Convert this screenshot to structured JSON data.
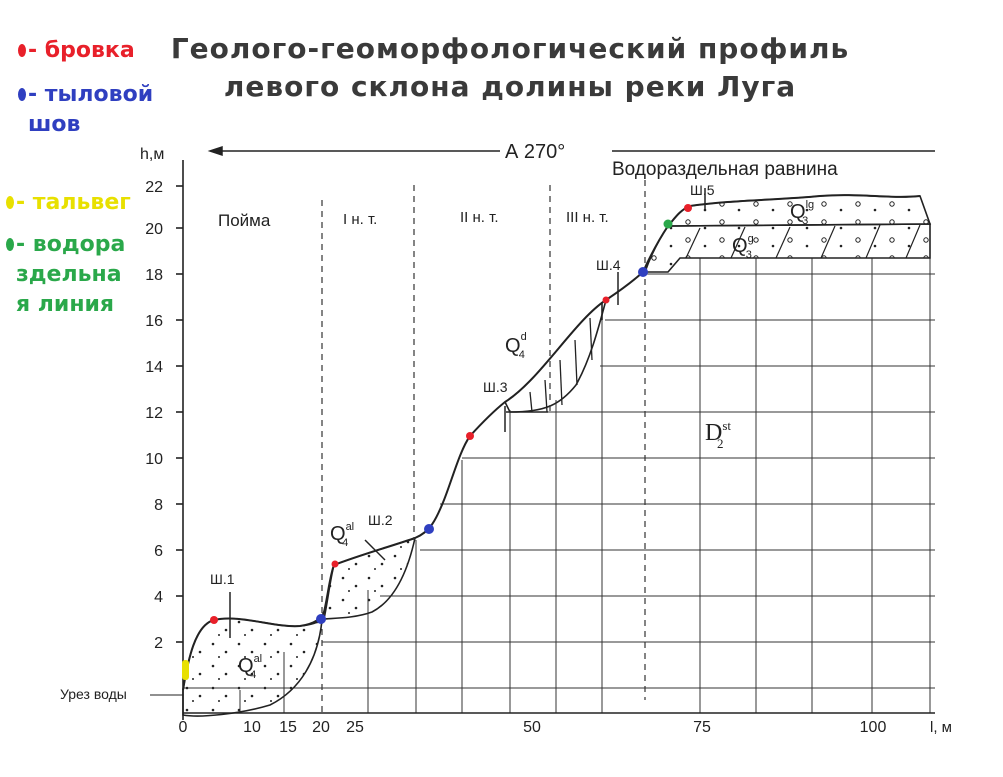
{
  "title": {
    "line1": "Геолого-геоморфологический профиль",
    "line2": "левого склона долины реки Луга"
  },
  "legend": [
    {
      "label": "- бровка",
      "color": "#e8202a",
      "icon": "red-dot"
    },
    {
      "label": "- тыловой шов",
      "color": "#2f3fc0",
      "icon": "blue-dot"
    },
    {
      "label": "- тальвег",
      "color": "#e8e000",
      "icon": "yellow-dot"
    },
    {
      "label": "- водораздельная линия",
      "color": "#2aa84a",
      "icon": "green-dot"
    }
  ],
  "axes": {
    "y_label": "h,м",
    "x_label": "l, м",
    "y_ticks": [
      "2",
      "4",
      "6",
      "8",
      "10",
      "12",
      "14",
      "16",
      "18",
      "20",
      "22"
    ],
    "x_ticks": [
      "0",
      "10",
      "15",
      "20",
      "25",
      "50",
      "75",
      "100"
    ],
    "water_level": "Урез воды"
  },
  "direction": {
    "label": "А 270°"
  },
  "zones": [
    "Пойма",
    "I н. т.",
    "II н. т.",
    "III н. т.",
    "Водораздельная равнина"
  ],
  "pits": [
    "Ш.1",
    "Ш.2",
    "Ш.3",
    "Ш.4",
    "Ш.5"
  ],
  "deposits": {
    "q4al_base": "Q",
    "q4al_sup": "al",
    "q4al_sub": "4",
    "q4d_base": "Q",
    "q4d_sup": "d",
    "q4d_sub": "4",
    "q3g_base": "Q",
    "q3g_sup": "g",
    "q3g_sub": "3",
    "q3lg_base": "Q",
    "q3lg_sup": "lg",
    "q3lg_sub": "3",
    "d2st_base": "D",
    "d2st_sup": "st",
    "d2st_sub": "2"
  },
  "colors": {
    "line": "#2a2a2a",
    "grid": "#333333",
    "brow": "#e8202a",
    "seam": "#2f3fc0",
    "thalweg": "#e8e000",
    "watershed": "#2aa84a"
  }
}
